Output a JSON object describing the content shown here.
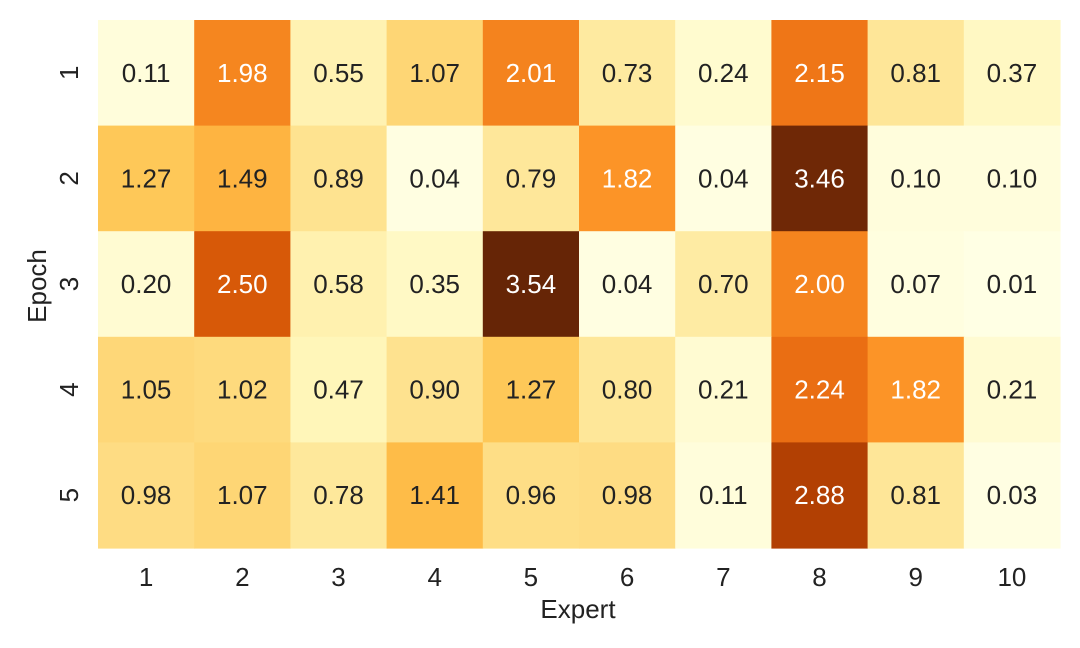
{
  "chart_data": {
    "type": "heatmap",
    "title": "",
    "xlabel": "Expert",
    "ylabel": "Epoch",
    "x_categories": [
      "1",
      "2",
      "3",
      "4",
      "5",
      "6",
      "7",
      "8",
      "9",
      "10"
    ],
    "y_categories": [
      "1",
      "2",
      "3",
      "4",
      "5"
    ],
    "values": [
      [
        0.11,
        1.98,
        0.55,
        1.07,
        2.01,
        0.73,
        0.24,
        2.15,
        0.81,
        0.37
      ],
      [
        1.27,
        1.49,
        0.89,
        0.04,
        0.79,
        1.82,
        0.04,
        3.46,
        0.1,
        0.1
      ],
      [
        0.2,
        2.5,
        0.58,
        0.35,
        3.54,
        0.04,
        0.7,
        2.0,
        0.07,
        0.01
      ],
      [
        1.05,
        1.02,
        0.47,
        0.9,
        1.27,
        0.8,
        0.21,
        2.24,
        1.82,
        0.21
      ],
      [
        0.98,
        1.07,
        0.78,
        1.41,
        0.96,
        0.98,
        0.11,
        2.88,
        0.81,
        0.03
      ]
    ],
    "color_range": [
      0,
      3.54
    ],
    "colormap": "YlOrBr",
    "grid": false,
    "legend": "none"
  }
}
